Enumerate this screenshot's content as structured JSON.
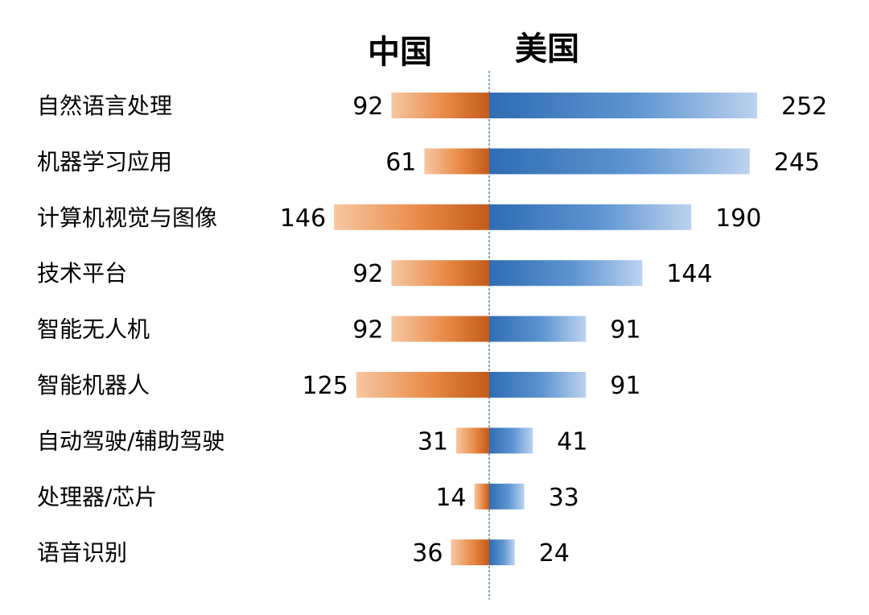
{
  "chart_data": {
    "type": "bar",
    "orientation": "horizontal",
    "layout": "butterfly",
    "categories": [
      "自然语言处理",
      "机器学习应用",
      "计算机视觉与图像",
      "技术平台",
      "智能无人机",
      "智能机器人",
      "自动驾驶/辅助驾驶",
      "处理器/芯片",
      "语音识别"
    ],
    "series": [
      {
        "name": "中国",
        "side": "left",
        "color": "#E07A2E",
        "values": [
          92,
          61,
          146,
          92,
          92,
          125,
          31,
          14,
          36
        ],
        "value_labels": [
          "92",
          "61",
          "146",
          "92",
          "92",
          "125",
          "31",
          "14",
          "36"
        ]
      },
      {
        "name": "美国",
        "side": "right",
        "color": "#3F7FC8",
        "values": [
          252,
          245,
          190,
          144,
          91,
          91,
          41,
          33,
          24
        ],
        "value_labels": [
          "252",
          "245",
          "190",
          "144",
          "91",
          "91",
          "41",
          "33",
          "24"
        ]
      }
    ],
    "xlim": [
      0,
      260
    ],
    "grid": false,
    "legend": "none",
    "center_divider": "dashed"
  }
}
